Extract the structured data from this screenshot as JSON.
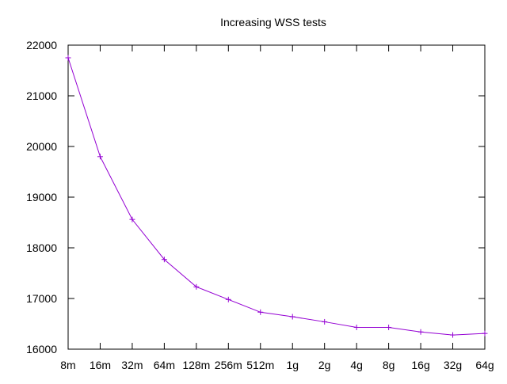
{
  "chart_data": {
    "type": "line",
    "title": "Increasing WSS tests",
    "xlabel": "",
    "ylabel": "",
    "categories": [
      "8m",
      "16m",
      "32m",
      "64m",
      "128m",
      "256m",
      "512m",
      "1g",
      "2g",
      "4g",
      "8g",
      "16g",
      "32g",
      "64g"
    ],
    "series": [
      {
        "values": [
          21750,
          19800,
          18560,
          17770,
          17230,
          16980,
          16730,
          16640,
          16540,
          16430,
          16430,
          16340,
          16280,
          16310
        ],
        "color": "#9400d3",
        "marker": "plus"
      }
    ],
    "ylim": [
      16000,
      22000
    ],
    "yticks": [
      16000,
      17000,
      18000,
      19000,
      20000,
      21000,
      22000
    ],
    "ytick_labels": [
      "16000",
      "17000",
      "18000",
      "19000",
      "20000",
      "21000",
      "22000"
    ],
    "grid": false,
    "legend": "none",
    "axis_color": "#000000"
  }
}
